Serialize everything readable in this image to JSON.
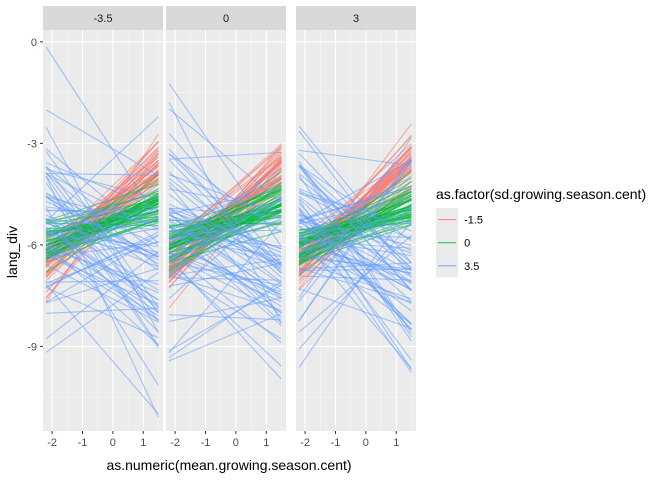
{
  "chart_data": {
    "type": "line",
    "xlabel": "as.numeric(mean.growing.season.cent)",
    "ylabel": "lang_div",
    "facets": [
      "-3.5",
      "0",
      "3"
    ],
    "x_ticks": [
      -2,
      -1,
      0,
      1
    ],
    "y_ticks": [
      0,
      -3,
      -6,
      -9
    ],
    "xlim": [
      -2.3,
      1.65
    ],
    "ylim": [
      -11.5,
      0.35
    ],
    "grid": true,
    "legend": {
      "title": "as.factor(sd.growing.season.cent)",
      "placement": "right",
      "entries": [
        "-1.5",
        "0",
        "3.5"
      ]
    },
    "series": [
      {
        "name": "-1.5",
        "color": "#F8766D",
        "start": [
          -2.2,
          -6.6
        ],
        "end": [
          1.5,
          -3.6
        ]
      },
      {
        "name": "0",
        "color": "#00BA38",
        "start": [
          -2.2,
          -6.0
        ],
        "end": [
          1.5,
          -4.8
        ]
      },
      {
        "name": "3.5",
        "color": "#619CFF",
        "start": [
          -2.2,
          -5.3
        ],
        "end": [
          1.5,
          -6.6
        ]
      }
    ]
  }
}
